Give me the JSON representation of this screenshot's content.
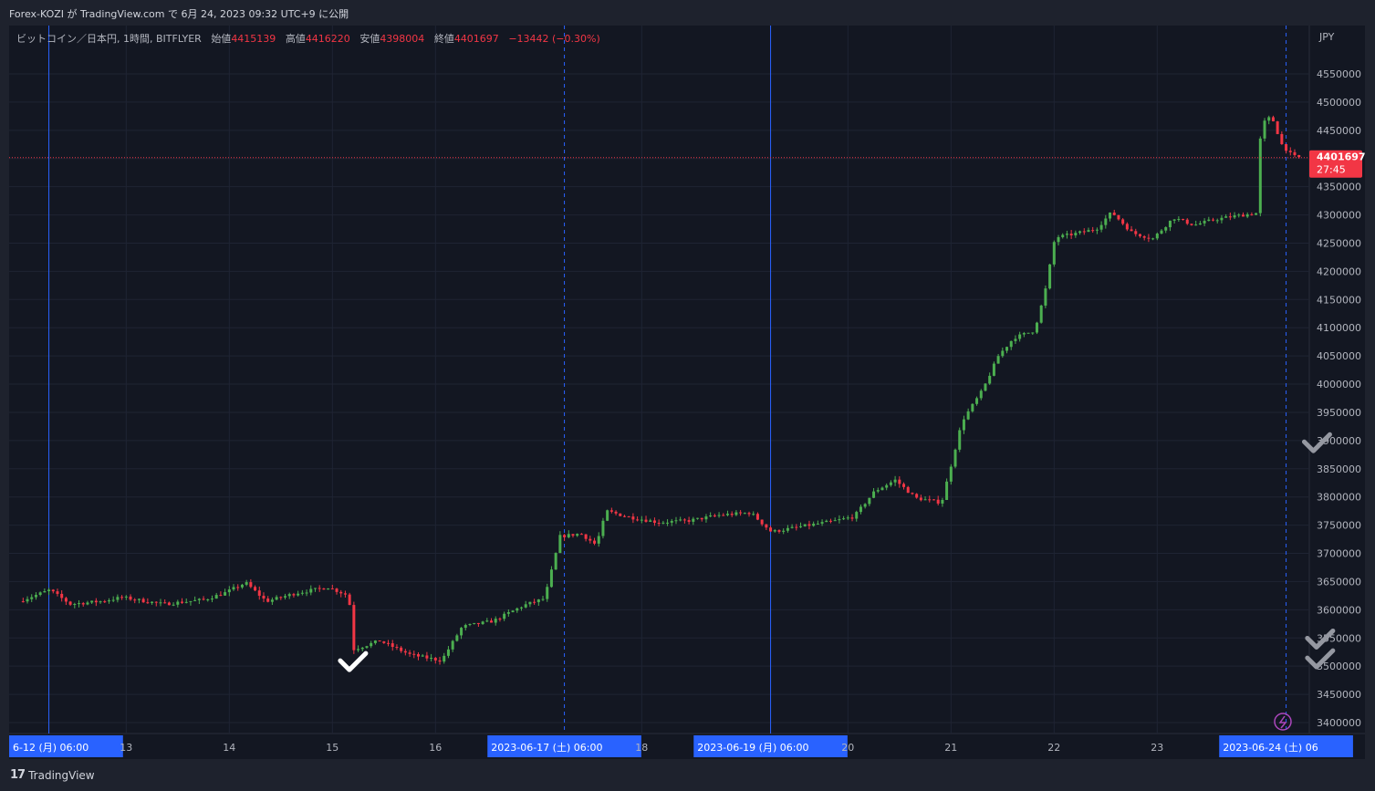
{
  "header": {
    "published_text": "Forex-KOZI が TradingView.com で 6月 24, 2023 09:32 UTC+9 に公開"
  },
  "legend": {
    "symbol": "ビットコイン／日本円, 1時間, BITFLYER",
    "open_label": "始値",
    "open": "4415139",
    "high_label": "高値",
    "high": "4416220",
    "low_label": "安値",
    "low": "4398004",
    "close_label": "終値",
    "close": "4401697",
    "change": "−13442 (−0.30%)"
  },
  "footer": {
    "brand": "TradingView",
    "logo": "tv-logo-icon"
  },
  "colors": {
    "up": "#26a69a",
    "up_bright": "#4caf50",
    "down": "#f23645",
    "background": "#131722",
    "grid": "#1f2433",
    "session_line": "#2962ff",
    "last_price_bg": "#f23645"
  },
  "chart_data": {
    "type": "candlestick",
    "title": "ビットコイン／日本円, 1時間, BITFLYER",
    "y_axis_unit": "JPY",
    "ylim": [
      3390000,
      4580000
    ],
    "yticks": [
      "3400000",
      "3450000",
      "3500000",
      "3550000",
      "3600000",
      "3650000",
      "3700000",
      "3750000",
      "3800000",
      "3850000",
      "3900000",
      "3950000",
      "4000000",
      "4050000",
      "4100000",
      "4150000",
      "4200000",
      "4250000",
      "4300000",
      "4350000",
      "4400000",
      "4450000",
      "4500000",
      "4550000"
    ],
    "x_day_ticks": [
      {
        "day": 12.25,
        "label": "6-12 (月)   06:00",
        "highlight": true
      },
      {
        "day": 13,
        "label": "13"
      },
      {
        "day": 14,
        "label": "14"
      },
      {
        "day": 15,
        "label": "15"
      },
      {
        "day": 16,
        "label": "16"
      },
      {
        "day": 17.25,
        "label": "2023-06-17 (土)   06:00",
        "highlight": true
      },
      {
        "day": 18,
        "label": "18"
      },
      {
        "day": 19.25,
        "label": "2023-06-19 (月)   06:00",
        "highlight": true
      },
      {
        "day": 20,
        "label": "20"
      },
      {
        "day": 21,
        "label": "21"
      },
      {
        "day": 22,
        "label": "22"
      },
      {
        "day": 23,
        "label": "23"
      },
      {
        "day": 24.25,
        "label": "2023-06-24 (土)   06",
        "highlight": true
      }
    ],
    "vertical_lines": [
      {
        "day": 12.25,
        "style": "solid"
      },
      {
        "day": 17.25,
        "style": "dashed"
      },
      {
        "day": 19.25,
        "style": "solid"
      },
      {
        "day": 24.25,
        "style": "dashed"
      }
    ],
    "last_price": {
      "value": 4401697,
      "label": "4401697",
      "countdown": "27:45"
    },
    "price_path": [
      [
        12.0,
        3615000
      ],
      [
        12.3,
        3635000
      ],
      [
        12.5,
        3610000
      ],
      [
        12.8,
        3615000
      ],
      [
        13.0,
        3622000
      ],
      [
        13.4,
        3610000
      ],
      [
        13.8,
        3618000
      ],
      [
        14.0,
        3630000
      ],
      [
        14.2,
        3648000
      ],
      [
        14.4,
        3615000
      ],
      [
        14.7,
        3630000
      ],
      [
        15.0,
        3640000
      ],
      [
        15.2,
        3625000
      ],
      [
        15.25,
        3530000
      ],
      [
        15.5,
        3545000
      ],
      [
        15.8,
        3520000
      ],
      [
        16.1,
        3510000
      ],
      [
        16.3,
        3570000
      ],
      [
        16.6,
        3580000
      ],
      [
        16.9,
        3608000
      ],
      [
        17.1,
        3620000
      ],
      [
        17.25,
        3730000
      ],
      [
        17.45,
        3735000
      ],
      [
        17.6,
        3715000
      ],
      [
        17.7,
        3775000
      ],
      [
        17.9,
        3765000
      ],
      [
        18.2,
        3755000
      ],
      [
        18.5,
        3758000
      ],
      [
        18.8,
        3768000
      ],
      [
        19.1,
        3772000
      ],
      [
        19.3,
        3738000
      ],
      [
        19.6,
        3748000
      ],
      [
        19.9,
        3757000
      ],
      [
        20.1,
        3765000
      ],
      [
        20.3,
        3810000
      ],
      [
        20.5,
        3830000
      ],
      [
        20.7,
        3798000
      ],
      [
        20.95,
        3790000
      ],
      [
        21.05,
        3862000
      ],
      [
        21.15,
        3935000
      ],
      [
        21.35,
        3990000
      ],
      [
        21.5,
        4050000
      ],
      [
        21.65,
        4082000
      ],
      [
        21.85,
        4095000
      ],
      [
        21.95,
        4160000
      ],
      [
        22.05,
        4260000
      ],
      [
        22.2,
        4265000
      ],
      [
        22.45,
        4275000
      ],
      [
        22.6,
        4305000
      ],
      [
        22.8,
        4268000
      ],
      [
        23.0,
        4258000
      ],
      [
        23.2,
        4295000
      ],
      [
        23.4,
        4282000
      ],
      [
        23.6,
        4292000
      ],
      [
        23.8,
        4298000
      ],
      [
        24.0,
        4303000
      ],
      [
        24.05,
        4460000
      ],
      [
        24.15,
        4475000
      ],
      [
        24.25,
        4425000
      ],
      [
        24.35,
        4405000
      ],
      [
        24.4,
        4401697
      ]
    ],
    "annotations": [
      {
        "type": "checkmark",
        "day": 15.2,
        "price": 3500000,
        "color": "#ffffff"
      },
      {
        "type": "checkmark",
        "day": 24.55,
        "price": 3888000,
        "color": "#9598a1"
      },
      {
        "type": "checkmark",
        "day": 24.58,
        "price": 3540000,
        "color": "#9598a1"
      },
      {
        "type": "checkmark",
        "day": 24.58,
        "price": 3505000,
        "color": "#9598a1"
      }
    ]
  }
}
